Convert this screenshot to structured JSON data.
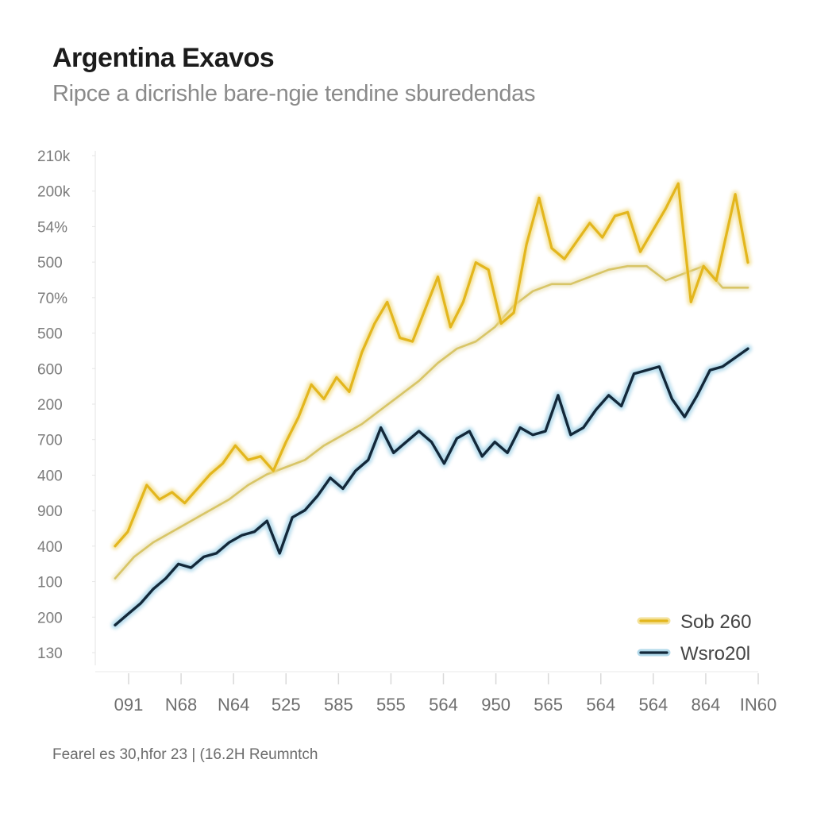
{
  "header": {
    "title": "Argentina Exavos",
    "subtitle": "Ripce a dicrishle bare-ngie tendine sburedendas"
  },
  "footer": {
    "source_text": "Fearel es 30,hfor 23 | (16.2H Reumntch"
  },
  "colors": {
    "gold": "#e3b61d",
    "gold_glow": "#f1da80",
    "pale": "#d8c567",
    "pale_glow": "#ebe2b6",
    "navy": "#13283a",
    "navy_glow": "#9fd0e6"
  },
  "chart_data": {
    "type": "line",
    "title": "Argentina Exavos",
    "subtitle": "Ripce a dicrishle bare-ngie tendine sburedendas",
    "xlabel": "",
    "ylabel": "",
    "x_tick_labels": [
      "091",
      "N68",
      "N64",
      "525",
      "585",
      "555",
      "564",
      "950",
      "565",
      "564",
      "564",
      "864",
      "IN60"
    ],
    "y_tick_labels": [
      "210k",
      "200k",
      "54%",
      "500",
      "70%",
      "500",
      "600",
      "200",
      "700",
      "400",
      "900",
      "400",
      "100",
      "200",
      "130"
    ],
    "y_range": [
      0,
      14
    ],
    "x_range": [
      0,
      100
    ],
    "grid": false,
    "legend_position": "bottom-right",
    "legend": [
      {
        "label": "Sob 260",
        "series": "gold"
      },
      {
        "label": "Wsro20l",
        "series": "navy"
      }
    ],
    "series": [
      {
        "name": "Sob 260",
        "color": "gold",
        "x": [
          0,
          2,
          5,
          7,
          9,
          11,
          13,
          15,
          17,
          19,
          21,
          23,
          25,
          27,
          29,
          31,
          33,
          35,
          37,
          39,
          41,
          43,
          45,
          47,
          49,
          51,
          53,
          55,
          57,
          59,
          61,
          63,
          65,
          67,
          69,
          71,
          73,
          75,
          77,
          79,
          81,
          83,
          85,
          87,
          89,
          91,
          93,
          95,
          97,
          98,
          100
        ],
        "y": [
          3.1,
          3.5,
          4.8,
          4.4,
          4.6,
          4.3,
          4.7,
          5.1,
          5.4,
          5.9,
          5.5,
          5.6,
          5.2,
          6.0,
          6.7,
          7.6,
          7.2,
          7.8,
          7.4,
          8.5,
          9.3,
          9.9,
          8.9,
          8.8,
          9.7,
          10.6,
          9.2,
          9.9,
          11.0,
          10.8,
          9.3,
          9.6,
          11.5,
          12.8,
          11.4,
          11.1,
          11.6,
          12.1,
          11.7,
          12.3,
          12.4,
          11.3,
          11.9,
          12.5,
          13.2,
          9.9,
          10.9,
          10.5,
          12.1,
          12.9,
          11.0
        ]
      },
      {
        "name": "",
        "color": "pale",
        "x": [
          0,
          3,
          6,
          9,
          12,
          15,
          18,
          21,
          24,
          27,
          30,
          33,
          36,
          39,
          42,
          45,
          48,
          51,
          54,
          57,
          60,
          63,
          66,
          69,
          72,
          75,
          78,
          81,
          84,
          87,
          90,
          93,
          96,
          100
        ],
        "y": [
          2.2,
          2.8,
          3.2,
          3.5,
          3.8,
          4.1,
          4.4,
          4.8,
          5.1,
          5.3,
          5.5,
          5.9,
          6.2,
          6.5,
          6.9,
          7.3,
          7.7,
          8.2,
          8.6,
          8.8,
          9.2,
          9.8,
          10.2,
          10.4,
          10.4,
          10.6,
          10.8,
          10.9,
          10.9,
          10.5,
          10.7,
          10.9,
          10.3,
          10.3
        ]
      },
      {
        "name": "Wsro20l",
        "color": "navy",
        "x": [
          0,
          2,
          4,
          6,
          8,
          10,
          12,
          14,
          16,
          18,
          20,
          22,
          24,
          26,
          28,
          30,
          32,
          34,
          36,
          38,
          40,
          42,
          44,
          46,
          48,
          50,
          52,
          54,
          56,
          58,
          60,
          62,
          64,
          66,
          68,
          70,
          72,
          74,
          76,
          78,
          80,
          82,
          84,
          86,
          88,
          90,
          92,
          94,
          96,
          100
        ],
        "y": [
          0.9,
          1.2,
          1.5,
          1.9,
          2.2,
          2.6,
          2.5,
          2.8,
          2.9,
          3.2,
          3.4,
          3.5,
          3.8,
          2.9,
          3.9,
          4.1,
          4.5,
          5.0,
          4.7,
          5.2,
          5.5,
          6.4,
          5.7,
          6.0,
          6.3,
          6.0,
          5.4,
          6.1,
          6.3,
          5.6,
          6.0,
          5.7,
          6.4,
          6.2,
          6.3,
          7.3,
          6.2,
          6.4,
          6.9,
          7.3,
          7.0,
          7.9,
          8.0,
          8.1,
          7.2,
          6.7,
          7.3,
          8.0,
          8.1,
          8.6
        ]
      }
    ]
  }
}
